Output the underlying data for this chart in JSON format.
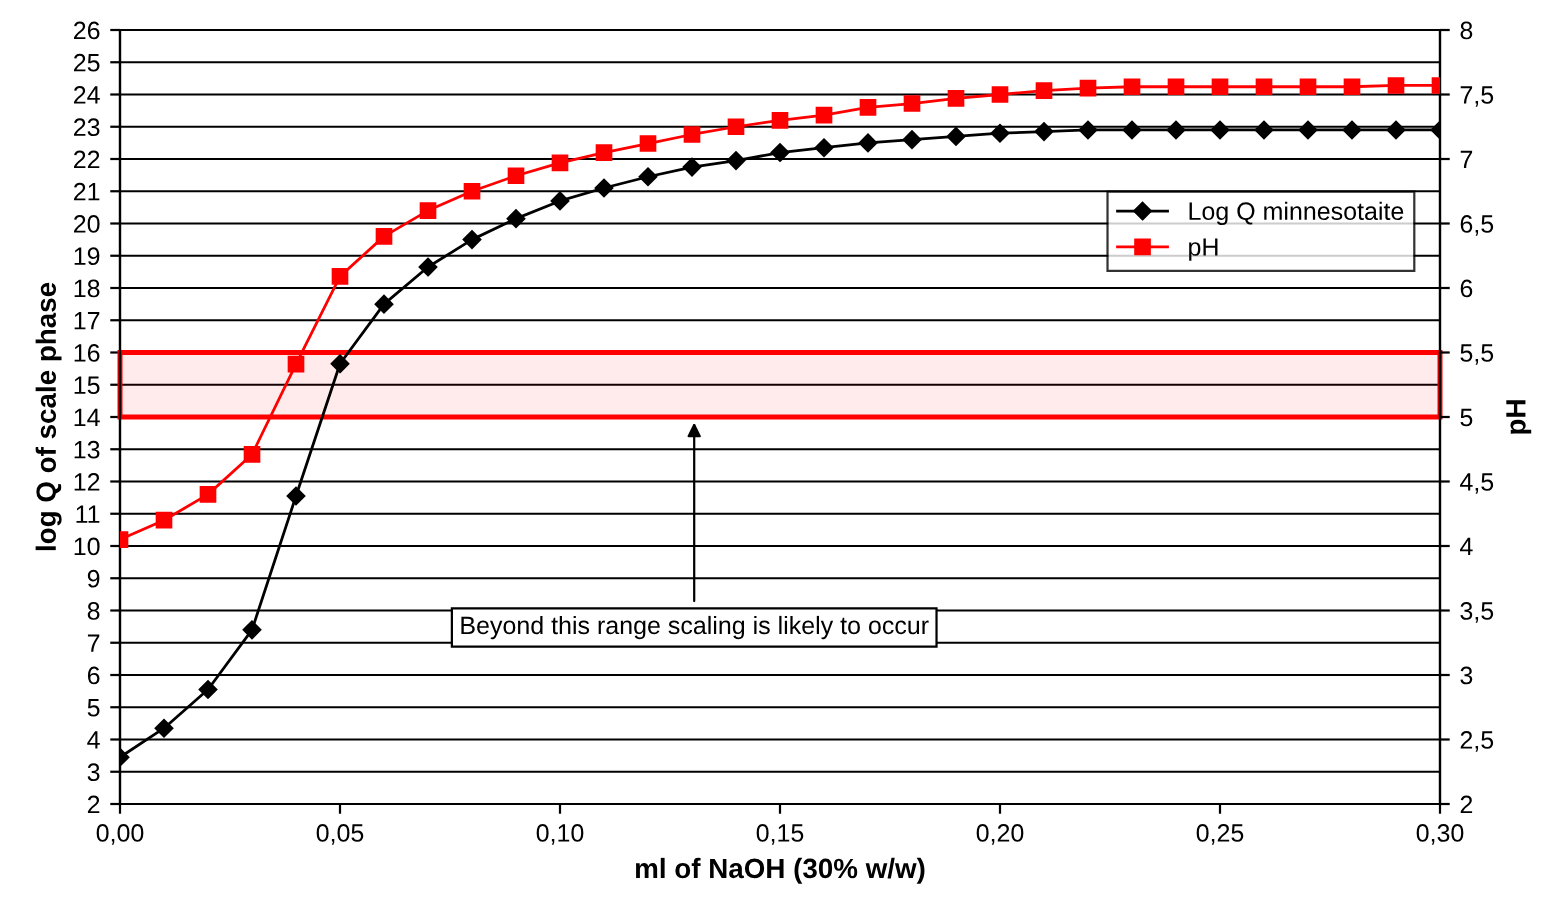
{
  "chart_data": {
    "type": "line",
    "xlabel": "ml of NaOH (30% w/w)",
    "ylabel": "log Q of scale phase",
    "y2label": "pH",
    "x": [
      0,
      0.01,
      0.02,
      0.03,
      0.04,
      0.05,
      0.06,
      0.07,
      0.08,
      0.09,
      0.1,
      0.11,
      0.12,
      0.13,
      0.14,
      0.15,
      0.16,
      0.17,
      0.18,
      0.19,
      0.2,
      0.21,
      0.22,
      0.23,
      0.24,
      0.25,
      0.26,
      0.27,
      0.28,
      0.29,
      0.3
    ],
    "series": [
      {
        "name": "Log Q minnesotaite",
        "color": "#000000",
        "marker": "diamond",
        "values": [
          3.45,
          4.35,
          5.55,
          7.4,
          11.55,
          15.65,
          17.5,
          18.65,
          19.5,
          20.15,
          20.7,
          21.1,
          21.45,
          21.75,
          21.95,
          22.2,
          22.35,
          22.5,
          22.6,
          22.7,
          22.8,
          22.85,
          22.9,
          22.9,
          22.9,
          22.9,
          22.9,
          22.9,
          22.9,
          22.9,
          22.9
        ]
      },
      {
        "name": "pH",
        "color": "#ff0000",
        "marker": "square",
        "axis": "y2",
        "values": [
          4.05,
          4.2,
          4.4,
          4.71,
          5.41,
          6.09,
          6.4,
          6.6,
          6.75,
          6.87,
          6.97,
          7.05,
          7.12,
          7.19,
          7.25,
          7.3,
          7.34,
          7.4,
          7.43,
          7.47,
          7.5,
          7.53,
          7.55,
          7.56,
          7.56,
          7.56,
          7.56,
          7.56,
          7.56,
          7.57,
          7.57
        ]
      }
    ],
    "xlim": [
      0,
      0.3
    ],
    "xticks": [
      {
        "value": 0,
        "label": "0,00"
      },
      {
        "value": 0.05,
        "label": "0,05"
      },
      {
        "value": 0.1,
        "label": "0,10"
      },
      {
        "value": 0.15,
        "label": "0,15"
      },
      {
        "value": 0.2,
        "label": "0,20"
      },
      {
        "value": 0.25,
        "label": "0,25"
      },
      {
        "value": 0.3,
        "label": "0,30"
      }
    ],
    "ylim": [
      2,
      26
    ],
    "yticks": [
      2,
      3,
      4,
      5,
      6,
      7,
      8,
      9,
      10,
      11,
      12,
      13,
      14,
      15,
      16,
      17,
      18,
      19,
      20,
      21,
      22,
      23,
      24,
      25,
      26
    ],
    "y2lim": [
      2,
      8
    ],
    "y2ticks": [
      2,
      {
        "value": 2.5,
        "label": "2,5"
      },
      3,
      {
        "value": 3.5,
        "label": "3,5"
      },
      4,
      {
        "value": 4.5,
        "label": "4,5"
      },
      5,
      {
        "value": 5.5,
        "label": "5,5"
      },
      6,
      {
        "value": 6.5,
        "label": "6,5"
      },
      7,
      {
        "value": 7.5,
        "label": "7,5"
      },
      8
    ],
    "bands": [
      {
        "axis": "y",
        "from": 14,
        "to": 16,
        "color": "#ff0000"
      }
    ],
    "annotations": [
      "Beyond this range scaling is likely to occur"
    ],
    "grid": "y",
    "legend": "right",
    "line_style": "solid"
  }
}
